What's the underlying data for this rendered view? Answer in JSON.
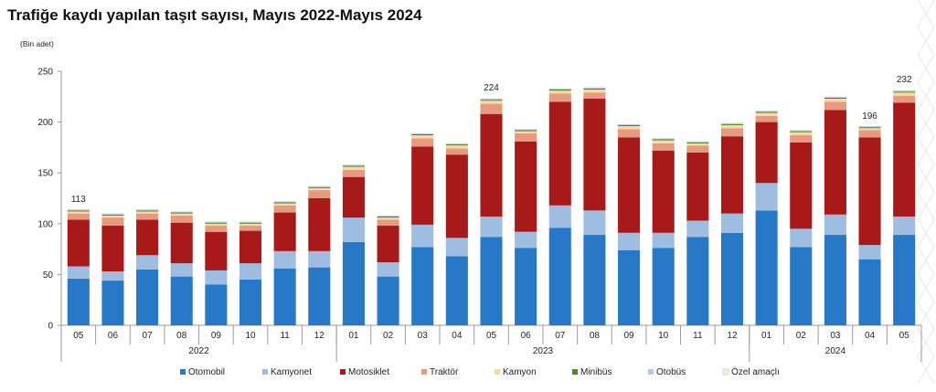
{
  "chart_data": {
    "type": "bar",
    "stacked": true,
    "title": "Trafiğe kaydı yapılan taşıt sayısı, Mayıs 2022-Mayıs 2024",
    "unit_label": "(Bin adet)",
    "ylim": [
      0,
      250
    ],
    "yticks": [
      0,
      50,
      100,
      150,
      200,
      250
    ],
    "grid": false,
    "legend_position": "bottom",
    "categories": [
      "05",
      "06",
      "07",
      "08",
      "09",
      "10",
      "11",
      "12",
      "01",
      "02",
      "03",
      "04",
      "05",
      "06",
      "07",
      "08",
      "09",
      "10",
      "11",
      "12",
      "01",
      "02",
      "03",
      "04",
      "05"
    ],
    "year_groups": [
      {
        "label": "2022",
        "start": 0,
        "end": 7
      },
      {
        "label": "2023",
        "start": 8,
        "end": 19
      },
      {
        "label": "2024",
        "start": 20,
        "end": 24
      }
    ],
    "series": [
      {
        "name": "Otomobil",
        "color": "#2878c8",
        "values": [
          46,
          44,
          55,
          48,
          40,
          45,
          56,
          57,
          82,
          48,
          77,
          68,
          87,
          76,
          96,
          89,
          74,
          76,
          87,
          91,
          113,
          77,
          89,
          65,
          89
        ]
      },
      {
        "name": "Kamyonet",
        "color": "#9fbde0",
        "values": [
          12,
          9,
          14,
          13,
          14,
          16,
          17,
          16,
          24,
          14,
          22,
          18,
          20,
          16,
          22,
          24,
          17,
          15,
          16,
          19,
          27,
          18,
          20,
          14,
          18
        ]
      },
      {
        "name": "Motosiklet",
        "color": "#a81a1a",
        "values": [
          46,
          45,
          35,
          40,
          38,
          32,
          38,
          52,
          40,
          36,
          77,
          82,
          101,
          89,
          102,
          110,
          94,
          81,
          67,
          76,
          60,
          85,
          103,
          106,
          112
        ]
      },
      {
        "name": "Traktör",
        "color": "#e69a80",
        "values": [
          6,
          8,
          6,
          7,
          6,
          5,
          7,
          8,
          7,
          6,
          8,
          6,
          10,
          8,
          8,
          6,
          8,
          7,
          7,
          8,
          6,
          7,
          8,
          7,
          7
        ]
      },
      {
        "name": "Kamyon",
        "color": "#fbd9a6",
        "values": [
          2,
          2,
          2,
          2,
          2,
          2,
          2,
          2,
          3,
          2,
          3,
          3,
          3,
          2,
          3,
          3,
          3,
          3,
          2,
          3,
          3,
          3,
          3,
          2,
          3
        ]
      },
      {
        "name": "Minibüs",
        "color": "#4a8a2a",
        "values": [
          1,
          1,
          1,
          1,
          1,
          1,
          1,
          1,
          1,
          1,
          1,
          1,
          1,
          1,
          1,
          1,
          1,
          1,
          1,
          1,
          1,
          1,
          1,
          1,
          1
        ]
      },
      {
        "name": "Otobüs",
        "color": "#b7cbe6",
        "values": [
          1,
          1,
          1,
          1,
          1,
          1,
          1,
          1,
          1,
          1,
          1,
          1,
          1,
          1,
          1,
          1,
          1,
          1,
          1,
          1,
          1,
          1,
          1,
          1,
          1
        ]
      },
      {
        "name": "Özel amaçlı",
        "color": "#f0f0e0",
        "values": [
          0,
          0,
          0,
          0,
          0,
          0,
          0,
          0,
          0,
          0,
          0,
          0,
          1,
          0,
          0,
          1,
          0,
          0,
          0,
          0,
          0,
          0,
          0,
          0,
          1
        ]
      }
    ],
    "annotations": [
      {
        "index": 0,
        "label": "113"
      },
      {
        "index": 12,
        "label": "224"
      },
      {
        "index": 23,
        "label": "196"
      },
      {
        "index": 24,
        "label": "232"
      }
    ]
  }
}
